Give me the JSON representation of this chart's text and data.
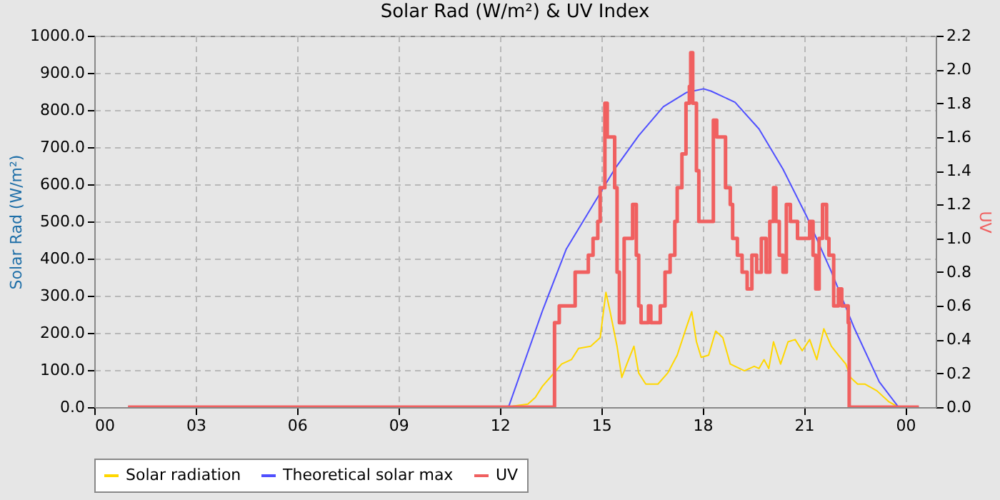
{
  "chart_data": {
    "type": "line",
    "title": "Solar Rad (W/m²) &  UV Index",
    "ylabel": "Solar Rad (W/m²)",
    "y2label": "UV",
    "xlim": [
      0,
      24.9
    ],
    "xticks": [
      {
        "value": 0,
        "label": "00"
      },
      {
        "value": 3,
        "label": "03"
      },
      {
        "value": 6,
        "label": "06"
      },
      {
        "value": 9,
        "label": "09"
      },
      {
        "value": 12,
        "label": "12"
      },
      {
        "value": 15,
        "label": "15"
      },
      {
        "value": 18,
        "label": "18"
      },
      {
        "value": 21,
        "label": "21"
      },
      {
        "value": 24,
        "label": "00"
      }
    ],
    "ylim": [
      0,
      1000
    ],
    "yticks": [
      {
        "value": 0,
        "label": "0.0"
      },
      {
        "value": 100,
        "label": "100.0"
      },
      {
        "value": 200,
        "label": "200.0"
      },
      {
        "value": 300,
        "label": "300.0"
      },
      {
        "value": 400,
        "label": "400.0"
      },
      {
        "value": 500,
        "label": "500.0"
      },
      {
        "value": 600,
        "label": "600.0"
      },
      {
        "value": 700,
        "label": "700.0"
      },
      {
        "value": 800,
        "label": "800.0"
      },
      {
        "value": 900,
        "label": "900.0"
      },
      {
        "value": 1000,
        "label": "1000.0"
      }
    ],
    "y2lim": [
      0,
      2.2
    ],
    "y2ticks": [
      {
        "value": 0,
        "label": "0.0"
      },
      0.2,
      0.4,
      0.6,
      0.8,
      {
        "value": 1,
        "label": "1.0"
      },
      1.2,
      1.4,
      1.6,
      1.8,
      {
        "value": 2,
        "label": "2.0"
      },
      2.2
    ],
    "grid": true,
    "legend": "bottom",
    "marker": "none",
    "series": [
      {
        "name": "Solar radiation",
        "color": "#ffd700",
        "x": [
          1.0,
          12.3,
          12.41,
          12.83,
          13.05,
          13.26,
          13.55,
          13.83,
          14.12,
          14.33,
          14.69,
          14.97,
          15.14,
          15.26,
          15.47,
          15.61,
          15.76,
          15.97,
          16.11,
          16.32,
          16.68,
          16.97,
          17.25,
          17.53,
          17.68,
          17.82,
          17.96,
          18.18,
          18.39,
          18.6,
          18.82,
          19.24,
          19.53,
          19.67,
          19.82,
          19.96,
          20.1,
          20.31,
          20.53,
          20.74,
          20.95,
          21.17,
          21.38,
          21.59,
          21.81,
          22.02,
          22.24,
          22.38,
          22.59,
          22.81,
          23.16,
          23.52,
          23.8,
          24.4
        ],
        "values": [
          0,
          0,
          3,
          8,
          26,
          56,
          86,
          116,
          128,
          158,
          164,
          187,
          309,
          259,
          164,
          80,
          116,
          164,
          92,
          62,
          62,
          92,
          140,
          217,
          257,
          176,
          134,
          140,
          205,
          187,
          116,
          98,
          110,
          104,
          128,
          104,
          176,
          116,
          176,
          182,
          152,
          182,
          128,
          211,
          164,
          140,
          116,
          80,
          62,
          62,
          44,
          14,
          0,
          0
        ]
      },
      {
        "name": "Theoretical solar max",
        "color": "#5050ff",
        "x": [
          1.0,
          12.1,
          12.27,
          13.26,
          13.97,
          14.69,
          15.4,
          16.11,
          16.84,
          17.52,
          18.03,
          18.25,
          18.96,
          19.67,
          20.38,
          21.1,
          21.8,
          22.5,
          23.23,
          23.8,
          24.4
        ],
        "values": [
          0,
          0,
          3,
          259,
          426,
          534,
          641,
          731,
          809,
          847,
          857,
          851,
          821,
          749,
          641,
          510,
          367,
          211,
          68,
          0,
          0
        ]
      },
      {
        "name": "UV",
        "type": "step",
        "axis": "y2",
        "color": "#f06060",
        "x": [
          1.0,
          13.62,
          13.76,
          14.23,
          14.62,
          14.76,
          14.9,
          14.97,
          15.11,
          15.18,
          15.4,
          15.47,
          15.54,
          15.68,
          15.93,
          16.04,
          16.11,
          16.18,
          16.4,
          16.47,
          16.75,
          16.89,
          17.04,
          17.18,
          17.25,
          17.39,
          17.51,
          17.61,
          17.65,
          17.71,
          17.82,
          17.89,
          18.32,
          18.42,
          18.68,
          18.82,
          18.89,
          19.03,
          19.17,
          19.32,
          19.46,
          19.6,
          19.74,
          19.88,
          19.99,
          20.1,
          20.17,
          20.27,
          20.38,
          20.48,
          20.6,
          20.81,
          21.17,
          21.27,
          21.35,
          21.45,
          21.55,
          21.67,
          21.74,
          21.88,
          22.02,
          22.12,
          22.31,
          22.34,
          24.4
        ],
        "values": [
          0,
          0.5,
          0.6,
          0.8,
          0.9,
          1.0,
          1.1,
          1.3,
          1.8,
          1.6,
          1.3,
          0.8,
          0.5,
          1.0,
          1.2,
          0.9,
          0.6,
          0.5,
          0.6,
          0.5,
          0.6,
          0.8,
          0.9,
          1.1,
          1.3,
          1.5,
          1.8,
          1.9,
          2.1,
          1.8,
          1.4,
          1.1,
          1.7,
          1.6,
          1.3,
          1.2,
          1.0,
          0.9,
          0.8,
          0.7,
          0.9,
          0.8,
          1.0,
          0.8,
          1.1,
          1.3,
          1.1,
          0.9,
          0.8,
          1.2,
          1.1,
          1.0,
          1.1,
          0.9,
          0.7,
          1.0,
          1.2,
          1.0,
          0.9,
          0.6,
          0.7,
          0.6,
          0.5,
          0,
          0
        ]
      }
    ]
  }
}
